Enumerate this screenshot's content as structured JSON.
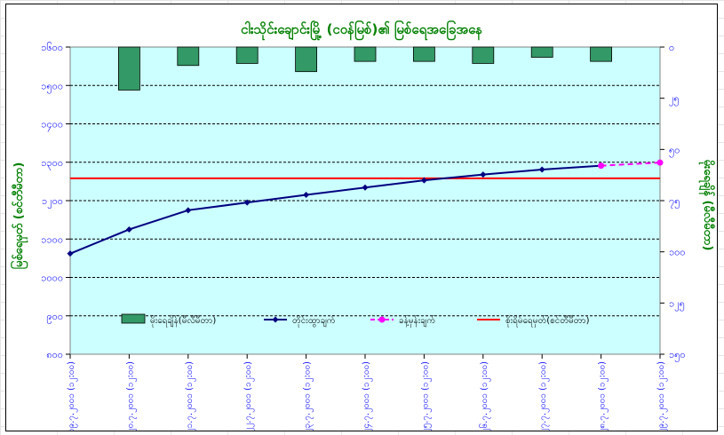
{
  "chart_data": {
    "type": "bar+line",
    "title": "ငါးသိုင်းချောင်းမြို့ (ငဝန်မြစ်)၏ မြစ်ရေအခြေအနေ",
    "ylabel_left": "မြစ်ရေမှတ် (စင်တီမီတာ)",
    "ylabel_right": "မိုးရေချိန် (မီလီမီတာ)",
    "left_axis": {
      "min": 800,
      "max": 1600,
      "step": 100,
      "tick_labels": [
        "၈၀၀",
        "၉၀၀",
        "၁၀၀၀",
        "၁၁၀၀",
        "၁၂၀၀",
        "၁၃၀၀",
        "၁၄၀၀",
        "၁၅၀၀",
        "၁၆၀၀"
      ]
    },
    "right_axis": {
      "min": 0,
      "max": 150,
      "step": 25,
      "reversed": true,
      "tick_labels": [
        "၀",
        "၂၅",
        "၅၀",
        "၇၅",
        "၁၀၀",
        "၁၂၅",
        "၁၅၀"
      ]
    },
    "categories": [
      "၁၉.၇.၂၀၀၁ (၁၂:၀၀)",
      "၂၀.၇.၂၀၀၁ (၁၂:၀၀)",
      "၂၁.၇.၂၀၀၁ (၁၂:၀၀)",
      "၂၂.၇.၂၀၀၁ (၁၂:၀၀)",
      "၂၃.၇.၂၀၀၁ (၁၂:၀၀)",
      "၂၄.၇.၂၀၀၁ (၁၂:၀၀)",
      "၂၅.၇.၂၀၀၁ (၁၂:၀၀)",
      "၂၆.၇.၂၀၀၁ (၁၂:၀၀)",
      "၂၇.၇.၂၀၀၁ (၁၂:၀၀)",
      "၂၈.၇.၂၀၀၁ (၁၂:၀၀)",
      "၂၉.၇.၂၀၀၁ (၁၂:၀၀)"
    ],
    "series": [
      {
        "name": "မိုးရေချိန်(မီလီမီတာ)",
        "type": "bar",
        "axis": "right",
        "color": "#339966",
        "values": [
          null,
          21,
          9,
          8,
          12,
          7,
          7,
          8,
          5,
          7,
          null
        ]
      },
      {
        "name": "တိုင်းထွာချက်",
        "type": "line",
        "axis": "left",
        "color": "#000080",
        "marker": "diamond",
        "values": [
          1062,
          1125,
          1175,
          1195,
          1215,
          1234,
          1253,
          1268,
          1281,
          1291,
          null
        ]
      },
      {
        "name": "ခန့်မှန်းချက်",
        "type": "line",
        "axis": "left",
        "color": "#ff00ff",
        "dashed": true,
        "marker": "circle",
        "values": [
          null,
          null,
          null,
          null,
          null,
          null,
          null,
          null,
          null,
          1291,
          1299
        ]
      },
      {
        "name": "စိုးရိမ်ရေမှတ်(စင်တီမီတာ)",
        "type": "hline",
        "axis": "left",
        "color": "#ff0000",
        "value": 1258
      }
    ],
    "grid": true,
    "legend_position": "bottom-inside"
  },
  "colors": {
    "plot_background": "#ccffff",
    "title": "#008000",
    "axis_labels": "#008000",
    "tick_labels": "#0000ff",
    "gridline": "#000000"
  }
}
